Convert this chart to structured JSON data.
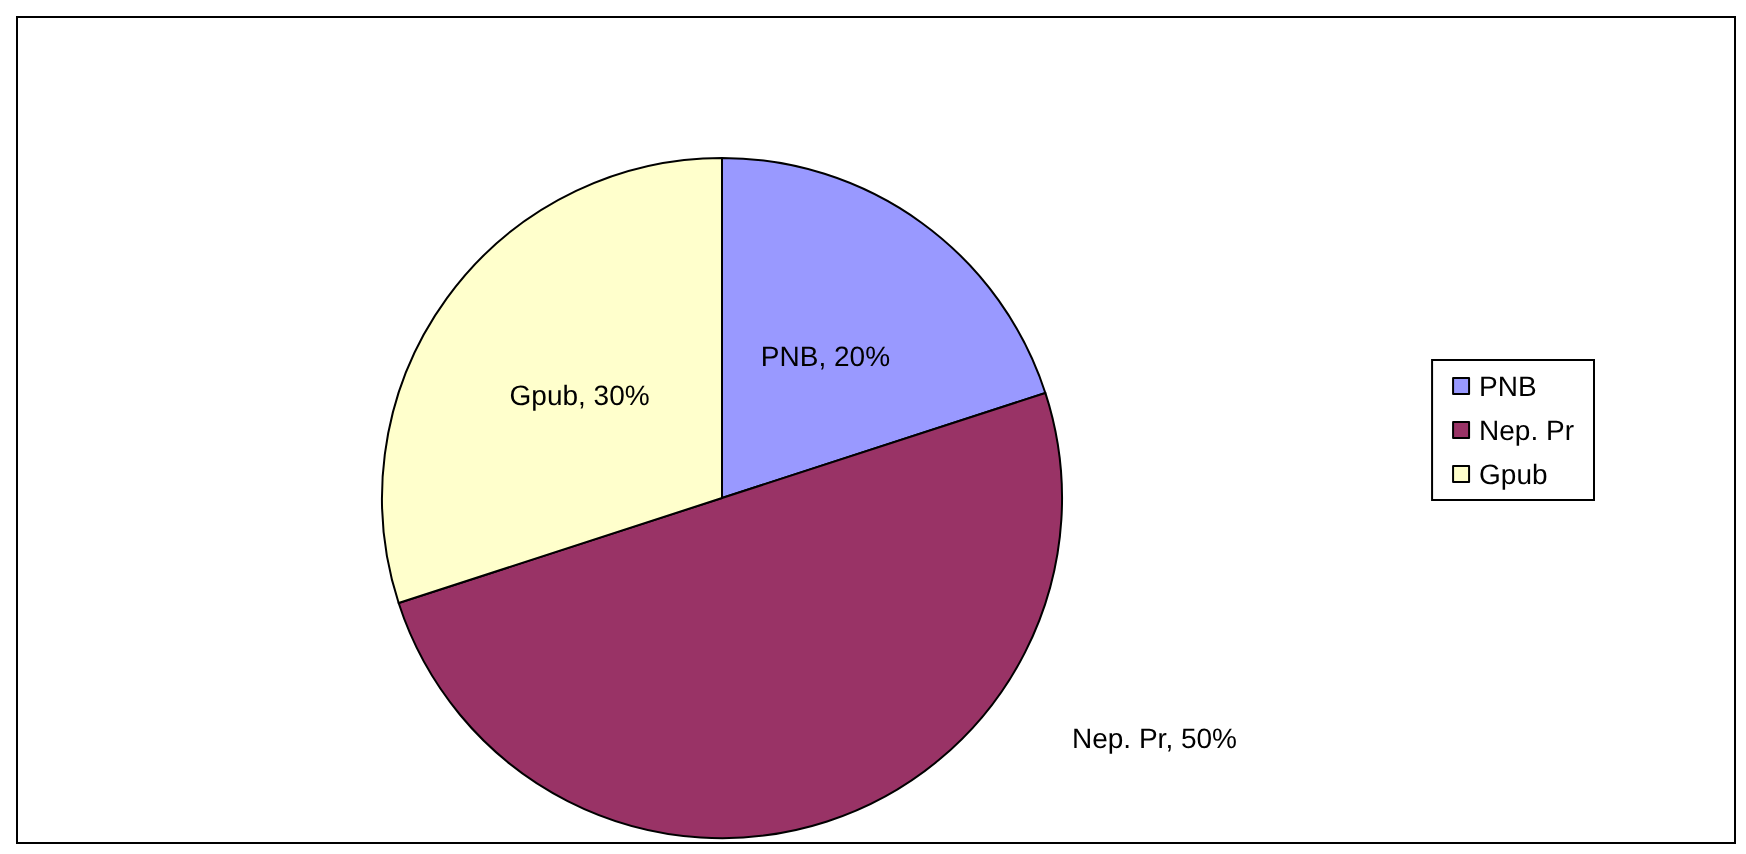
{
  "chart_data": {
    "type": "pie",
    "categories": [
      "PNB",
      "Nep. Pr",
      "Gpub"
    ],
    "values": [
      20,
      50,
      30
    ],
    "value_labels": [
      "PNB, 20%",
      "Nep. Pr, 50%",
      "Gpub, 30%"
    ],
    "colors": [
      "#9999ff",
      "#993366",
      "#ffffcc"
    ],
    "legend": "right"
  }
}
